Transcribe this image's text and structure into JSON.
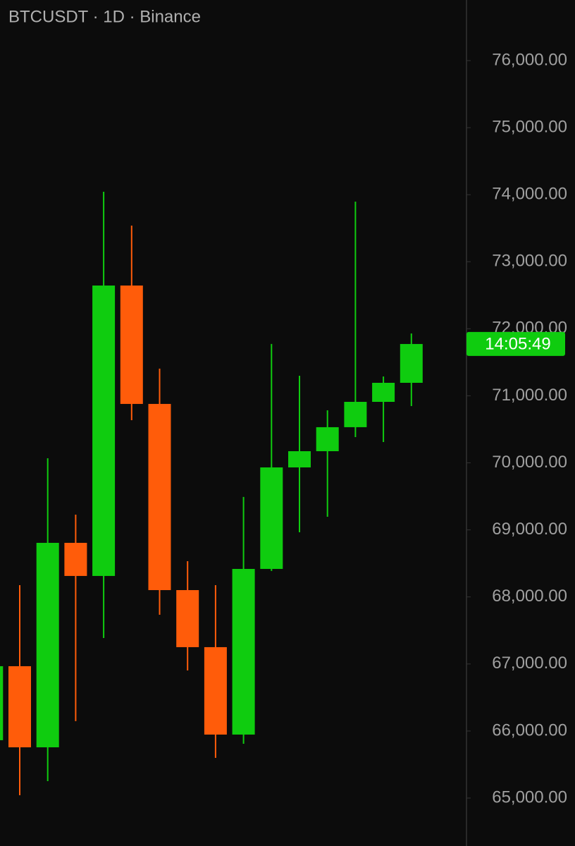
{
  "chart_data": {
    "type": "candlestick",
    "title": "BTCUSDT · 1D · Binance",
    "open": [
      65863,
      66967,
      65757,
      68807,
      68313,
      72645,
      70879,
      68102,
      67251,
      65947,
      68418,
      69932,
      70174,
      70532,
      70910,
      71194
    ],
    "high": [
      66967,
      68176,
      70069,
      69228,
      74044,
      73539,
      71405,
      68534,
      68176,
      69491,
      71773,
      71299,
      70784,
      73897,
      71289,
      71930
    ],
    "low": [
      65863,
      65042,
      65253,
      66147,
      67387,
      70637,
      67734,
      66904,
      65600,
      65810,
      68387,
      68965,
      69196,
      70384,
      70311,
      70847
    ],
    "close": [
      66967,
      65757,
      68807,
      68313,
      72645,
      70879,
      68102,
      67251,
      65947,
      68418,
      69932,
      70174,
      70532,
      70910,
      71194,
      71773
    ],
    "up_color": "#0fcc0f",
    "down_color": "#ff5c0a",
    "ylim": [
      64285,
      76904
    ],
    "yticks": [
      {
        "value": 65000,
        "label": "65,000.00"
      },
      {
        "value": 66000,
        "label": "66,000.00"
      },
      {
        "value": 67000,
        "label": "67,000.00"
      },
      {
        "value": 68000,
        "label": "68,000.00"
      },
      {
        "value": 69000,
        "label": "69,000.00"
      },
      {
        "value": 70000,
        "label": "70,000.00"
      },
      {
        "value": 71000,
        "label": "71,000.00"
      },
      {
        "value": 72000,
        "label": "72,000.00"
      },
      {
        "value": 73000,
        "label": "73,000.00"
      },
      {
        "value": 74000,
        "label": "74,000.00"
      },
      {
        "value": 75000,
        "label": "75,000.00"
      },
      {
        "value": 76000,
        "label": "76,000.00"
      }
    ],
    "price_label": "14:05:49"
  }
}
